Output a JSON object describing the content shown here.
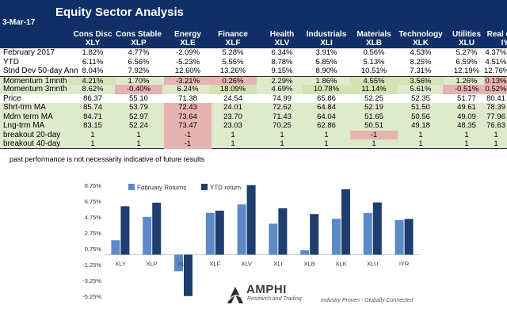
{
  "report": {
    "title": "Equity Sector  Analysis",
    "date": "3-Mar-17",
    "disclaimer": "past performance is not necessarily indicative of future results"
  },
  "sectors": [
    {
      "name": "Cons Disc",
      "ticker": "XLY"
    },
    {
      "name": "Cons Stable",
      "ticker": "XLP"
    },
    {
      "name": "Energy",
      "ticker": "XLE"
    },
    {
      "name": "Finance",
      "ticker": "XLF"
    },
    {
      "name": "Health",
      "ticker": "XLV"
    },
    {
      "name": "Industrials",
      "ticker": "XLI"
    },
    {
      "name": "Materials",
      "ticker": "XLB"
    },
    {
      "name": "Technology",
      "ticker": "XLK"
    },
    {
      "name": "Utilities",
      "ticker": "XLU"
    },
    {
      "name": "Real estate",
      "ticker": "IYR"
    }
  ],
  "rows": [
    {
      "label": "February 2017",
      "values": [
        "1.82%",
        "4.77%",
        "-2.09%",
        "5.28%",
        "6.34%",
        "3.91%",
        "0.56%",
        "4.53%",
        "5.27%",
        "4.37%"
      ]
    },
    {
      "label": "YTD",
      "values": [
        "6.11%",
        "6.56%",
        "-5.23%",
        "5.55%",
        "8.78%",
        "5.85%",
        "5.13%",
        "8.25%",
        "6.59%",
        "4.51%"
      ]
    },
    {
      "label": "Stnd Dev 50-day Ann",
      "values": [
        "8.04%",
        "7.92%",
        "12.60%",
        "13.26%",
        "9.15%",
        "8.90%",
        "10.51%",
        "7.31%",
        "12.19%",
        "12.76%"
      ]
    },
    {
      "label": "Momentum 1mnth",
      "values": [
        "4.21%",
        "1.70%",
        "-3.21%",
        "0.26%",
        "2.29%",
        "1.86%",
        "4.55%",
        "3.56%",
        "1.26%",
        "0.13%"
      ],
      "hl": [
        "pos",
        "",
        "neg",
        "neg",
        "",
        "",
        "pos",
        "pos",
        "",
        "neg"
      ]
    },
    {
      "label": "Momentum 3mnth",
      "values": [
        "8.62%",
        "-0.40%",
        "6.24%",
        "18.09%",
        "4.69%",
        "10.78%",
        "11.14%",
        "5.61%",
        "-0.51%",
        "0.52%"
      ],
      "hl": [
        "",
        "neg",
        "",
        "pos",
        "",
        "pos",
        "pos",
        "",
        "neg",
        "neg"
      ]
    },
    {
      "label": "Price",
      "values": [
        "86.37",
        "55.10",
        "71.38",
        "24.54",
        "74.99",
        "65.86",
        "52.25",
        "52.35",
        "51.77",
        "80.41"
      ]
    },
    {
      "label": "Shrt-trm MA",
      "values": [
        "85.74",
        "53.79",
        "72.43",
        "24.01",
        "72.62",
        "64.84",
        "52.19",
        "51.50",
        "49.61",
        "78.39"
      ],
      "hl": [
        "",
        "",
        "neg",
        "",
        "",
        "",
        "",
        "",
        "",
        ""
      ]
    },
    {
      "label": "Mdm term MA",
      "values": [
        "84.71",
        "52.97",
        "73.64",
        "23.70",
        "71.43",
        "64.04",
        "51.65",
        "50.56",
        "49.09",
        "77.96"
      ],
      "hl": [
        "",
        "",
        "neg",
        "",
        "",
        "",
        "",
        "",
        "",
        ""
      ]
    },
    {
      "label": "Lng-trm MA",
      "values": [
        "83.15",
        "52.24",
        "73.47",
        "23.03",
        "70.25",
        "62.86",
        "50.51",
        "49.18",
        "48.35",
        "76.63"
      ],
      "hl": [
        "",
        "",
        "neg",
        "",
        "",
        "",
        "",
        "",
        "",
        ""
      ]
    },
    {
      "label": "breakout 20-day",
      "values": [
        "1",
        "1",
        "-1",
        "1",
        "1",
        "1",
        "-1",
        "1",
        "1",
        "1"
      ],
      "hl": [
        "",
        "",
        "neg",
        "",
        "",
        "",
        "neg",
        "",
        "",
        ""
      ]
    },
    {
      "label": "breakout 40-day",
      "values": [
        "1",
        "1",
        "-1",
        "1",
        "1",
        "1",
        "1",
        "1",
        "1",
        "1"
      ],
      "hl": [
        "",
        "",
        "neg",
        "",
        "",
        "",
        "",
        "",
        "",
        ""
      ]
    }
  ],
  "colors": {
    "header": "#0f2f66",
    "green_band": "#dfe9cc",
    "negative_highlight": "#e7b3b0",
    "positive_highlight": "#d3e3b4",
    "february_series": "#5b8ac6",
    "ytd_series": "#1f3d6e"
  },
  "chart_data": {
    "type": "bar",
    "categories": [
      "XLY",
      "XLP",
      "XLE",
      "XLF",
      "XLV",
      "XLI",
      "XLB",
      "XLK",
      "XLU",
      "IYR"
    ],
    "series": [
      {
        "name": "February Returns",
        "values": [
          1.82,
          4.77,
          -2.09,
          5.28,
          6.34,
          3.91,
          0.56,
          4.53,
          5.27,
          4.37
        ]
      },
      {
        "name": "YTD return",
        "values": [
          6.11,
          6.56,
          -5.23,
          5.55,
          8.78,
          5.85,
          5.13,
          8.25,
          6.59,
          4.51
        ]
      }
    ],
    "yticks": [
      "8.75%",
      "6.75%",
      "4.75%",
      "2.75%",
      "0.75%",
      "-1.25%",
      "-3.25%",
      "-5.25%"
    ],
    "ylim": [
      -5.25,
      8.75
    ],
    "legend_position": "top-left",
    "grid": false
  },
  "branding": {
    "logo_name": "AMPHI",
    "logo_sub": "Research and Trading",
    "tagline": "Industry Proven  -  Globally Connected"
  }
}
